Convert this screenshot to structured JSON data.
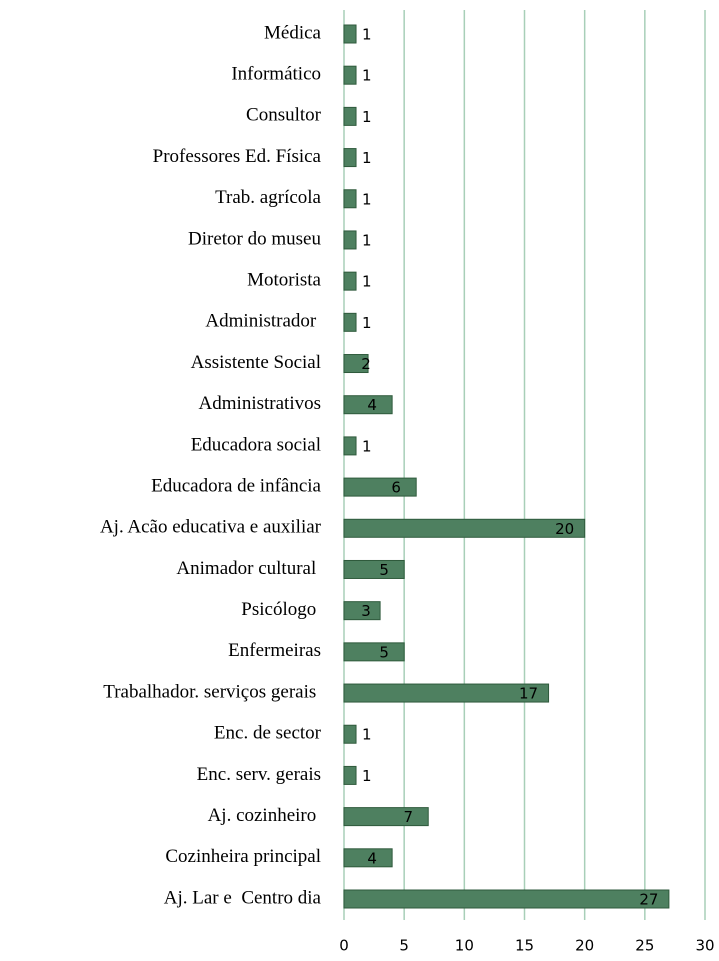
{
  "chart_data": {
    "type": "hbar",
    "categories": [
      "Médica",
      "Informático",
      "Consultor",
      "Professores Ed. Física",
      "Trab. agrícola",
      "Diretor do museu",
      "Motorista",
      "Administrador ",
      "Assistente Social",
      "Administrativos",
      "Educadora social",
      "Educadora de infância",
      "Aj. Acão educativa e auxiliar",
      "Animador cultural ",
      "Psicólogo ",
      "Enfermeiras",
      "Trabalhador. serviços gerais ",
      "Enc. de sector",
      "Enc. serv. gerais",
      "Aj. cozinheiro ",
      "Cozinheira principal",
      "Aj. Lar e  Centro dia"
    ],
    "values": [
      1,
      1,
      1,
      1,
      1,
      1,
      1,
      1,
      2,
      4,
      1,
      6,
      20,
      5,
      3,
      5,
      17,
      1,
      1,
      7,
      4,
      27
    ],
    "color": "#4e8060",
    "xlim": [
      0,
      30
    ],
    "xticks": [
      0,
      5,
      10,
      15,
      20,
      25,
      30
    ],
    "grid": true,
    "grid_color": "#a8cfb8"
  }
}
